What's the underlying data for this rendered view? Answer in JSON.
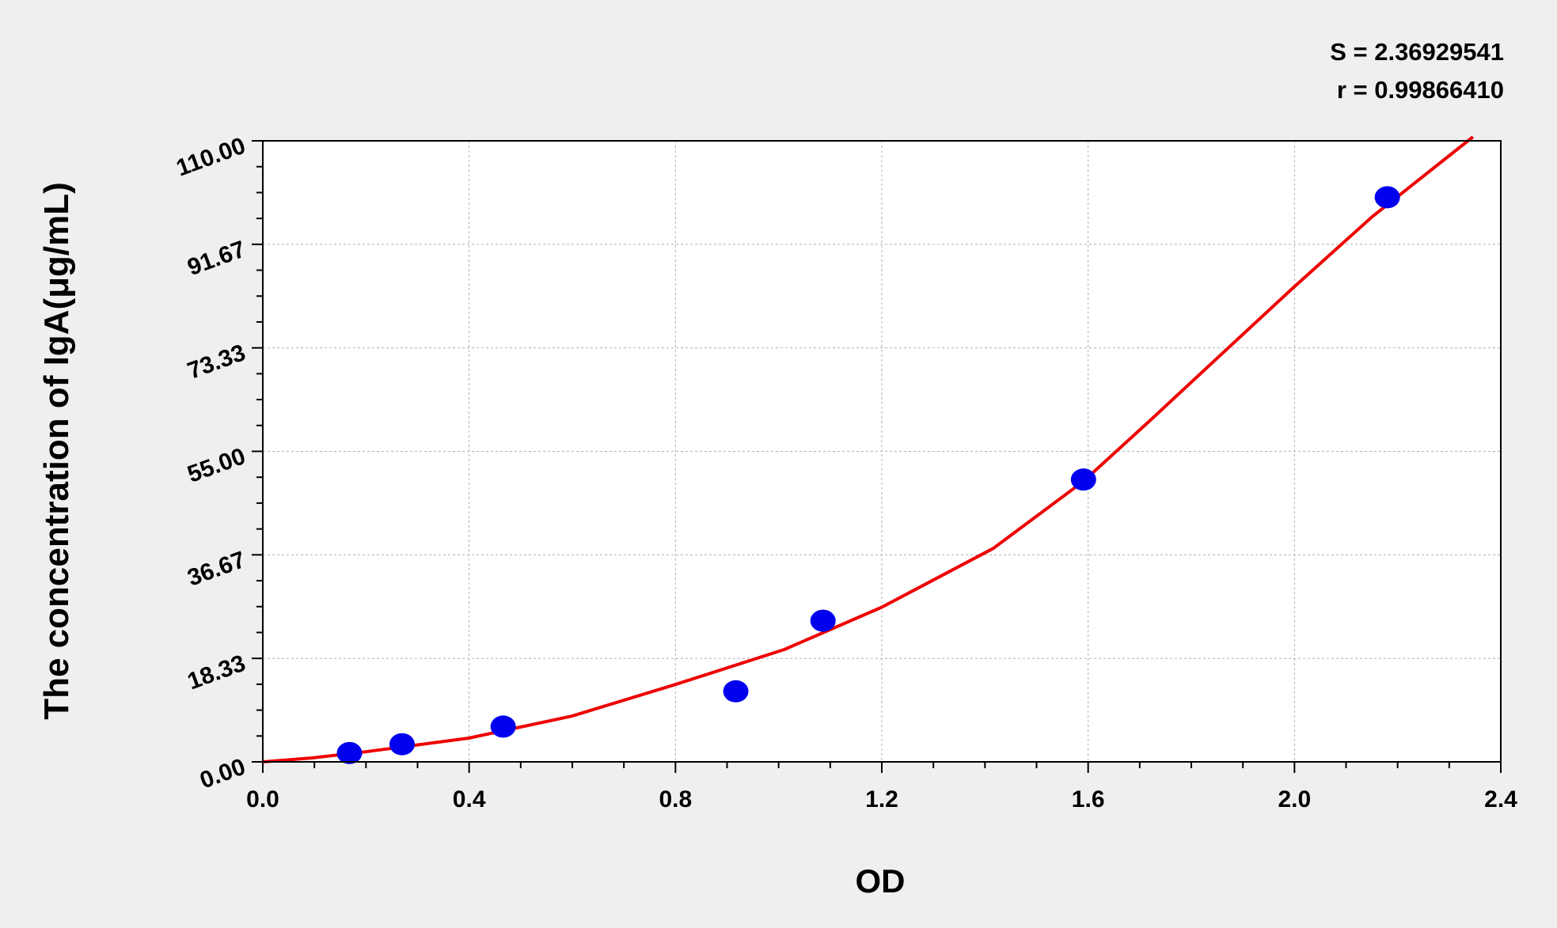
{
  "chart_data": {
    "type": "scatter",
    "title": "",
    "xlabel": "OD",
    "ylabel": "The concentration of  IgA(μg/mL)",
    "xlim": [
      0,
      2.4
    ],
    "ylim": [
      0,
      110
    ],
    "x_ticks": [
      "0.0",
      "0.4",
      "0.8",
      "1.2",
      "1.6",
      "2.0",
      "2.4"
    ],
    "y_ticks": [
      "0.00",
      "18.33",
      "36.67",
      "55.00",
      "73.33",
      "91.67",
      "110.00"
    ],
    "grid": true,
    "annotations": [
      "S = 2.36929541",
      "r = 0.99866410"
    ],
    "colors": {
      "points": "#0000ee",
      "curve": "#ee0000",
      "background": "#efefef",
      "plot_area": "#ffffff"
    },
    "series": [
      {
        "type": "scatter",
        "x": [
          0.168,
          0.27,
          0.466,
          0.917,
          1.086,
          1.591,
          2.18
        ],
        "y": [
          1.56,
          3.12,
          6.25,
          12.5,
          25,
          50,
          100
        ]
      },
      {
        "type": "line",
        "x": [
          0,
          0.096,
          0.2,
          0.399,
          0.599,
          0.8,
          1.011,
          1.2,
          1.416,
          1.591,
          1.724,
          1.85,
          1.993,
          2.15,
          2.346
        ],
        "y": [
          0,
          0.7,
          1.8,
          4.2,
          8.1,
          13.7,
          19.9,
          27.4,
          37.8,
          49.7,
          60.8,
          71.5,
          83.6,
          96.5,
          110.7
        ]
      }
    ]
  }
}
